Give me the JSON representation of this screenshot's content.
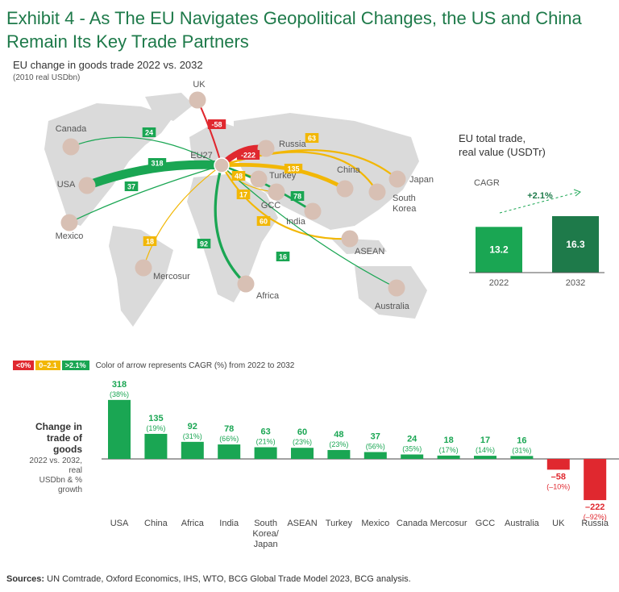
{
  "header": {
    "title": "Exhibit 4 - As The EU Navigates Geopolitical Changes, the US and China Remain Its Key Trade Partners",
    "subtitle": "EU change in goods trade 2022 vs. 2032",
    "unit_note": "(2010 real USDbn)"
  },
  "colors": {
    "green": "#1aa653",
    "yellow": "#f2b705",
    "red": "#e0282f",
    "node": "#d8c0b4",
    "map": "#dadada",
    "dark_green": "#1e7a4a"
  },
  "map": {
    "hub_label": "EU27",
    "nodes": [
      {
        "name": "UK",
        "value": "-58",
        "cagr": "red"
      },
      {
        "name": "Canada",
        "value": "24",
        "cagr": "green"
      },
      {
        "name": "USA",
        "value": "318",
        "cagr": "green"
      },
      {
        "name": "Mexico",
        "value": "37",
        "cagr": "green"
      },
      {
        "name": "Mercosur",
        "value": "18",
        "cagr": "yellow"
      },
      {
        "name": "Africa",
        "value": "92",
        "cagr": "green"
      },
      {
        "name": "Russia",
        "value": "-222",
        "cagr": "red"
      },
      {
        "name": "Turkey",
        "value": "48",
        "cagr": "yellow"
      },
      {
        "name": "GCC",
        "value": "17",
        "cagr": "yellow"
      },
      {
        "name": "India",
        "value": "78",
        "cagr": "green"
      },
      {
        "name": "China",
        "value": "135",
        "cagr": "yellow"
      },
      {
        "name": "Japan",
        "value": "63",
        "cagr": "yellow"
      },
      {
        "name": "South Korea",
        "value": "63",
        "cagr": "yellow"
      },
      {
        "name": "ASEAN",
        "value": "60",
        "cagr": "yellow"
      },
      {
        "name": "Australia",
        "value": "16",
        "cagr": "green"
      }
    ]
  },
  "total_trade": {
    "title_line1": "EU total trade,",
    "title_line2": "real value (USDTr)",
    "cagr_label": "CAGR",
    "cagr_value": "+2.1%",
    "bars": [
      {
        "year": "2022",
        "value": 13.2
      },
      {
        "year": "2032",
        "value": 16.3
      }
    ]
  },
  "legend": {
    "items": [
      {
        "label": "<0%",
        "color": "#e0282f"
      },
      {
        "label": "0–2.1",
        "color": "#f2b705"
      },
      {
        "label": ">2.1%",
        "color": "#1aa653"
      }
    ],
    "text": "Color of arrow represents CAGR (%) from 2022 to 2032"
  },
  "bar_ylabel": {
    "main_line1": "Change in",
    "main_line2": "trade of goods",
    "sub_line1": "2022 vs. 2032, real",
    "sub_line2": "USDbn & % growth"
  },
  "chart_data": {
    "type": "bar",
    "categories": [
      "USA",
      "China",
      "Africa",
      "India",
      "South Korea/ Japan",
      "ASEAN",
      "Turkey",
      "Mexico",
      "Canada",
      "Mercosur",
      "GCC",
      "Australia",
      "UK",
      "Russia"
    ],
    "values": [
      318,
      135,
      92,
      78,
      63,
      60,
      48,
      37,
      24,
      18,
      17,
      16,
      -58,
      -222
    ],
    "value_labels": [
      "318",
      "135",
      "92",
      "78",
      "63",
      "60",
      "48",
      "37",
      "24",
      "18",
      "17",
      "16",
      "–58",
      "–222"
    ],
    "growth_labels": [
      "(38%)",
      "(19%)",
      "(31%)",
      "(66%)",
      "(21%)",
      "(23%)",
      "(23%)",
      "(56%)",
      "(35%)",
      "(17%)",
      "(14%)",
      "(31%)",
      "(–10%)",
      "(–92%)"
    ]
  },
  "sources": {
    "label": "Sources:",
    "text": " UN Comtrade, Oxford Economics, IHS, WTO, BCG Global Trade Model 2023, BCG analysis."
  }
}
